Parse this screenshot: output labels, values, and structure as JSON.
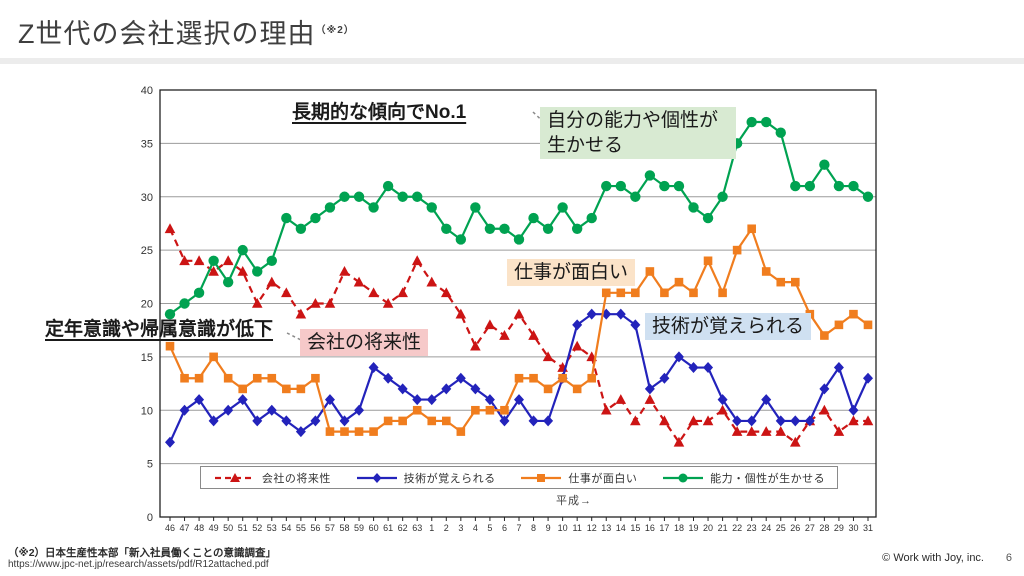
{
  "slide": {
    "title": "Z世代の会社選択の理由",
    "title_note": "（※2）",
    "footnote_line1": "（※2）日本生産性本部「新入社員働くことの意識調査」",
    "footnote_line2": "https://www.jpc-net.jp/research/assets/pdf/R12attached.pdf",
    "copyright": "© Work with Joy, inc.",
    "page_number": "6"
  },
  "annotations": {
    "trend_no1": "長期的な傾向でNo.1",
    "ability_box": "自分の能力や個性が生かせる",
    "decline_note": "定年意識や帰属意識が低下",
    "future_box": "会社の将来性",
    "fun_box": "仕事が面白い",
    "skill_box": "技術が覚えられる"
  },
  "chart_data": {
    "type": "line",
    "title": "",
    "xlabel_note": "平成→",
    "ylim": [
      0,
      40
    ],
    "ytick_step": 5,
    "grid": true,
    "legend_position": "bottom-inside",
    "categories": [
      "46",
      "47",
      "48",
      "49",
      "50",
      "51",
      "52",
      "53",
      "54",
      "55",
      "56",
      "57",
      "58",
      "59",
      "60",
      "61",
      "62",
      "63",
      "1",
      "2",
      "3",
      "4",
      "5",
      "6",
      "7",
      "8",
      "9",
      "10",
      "11",
      "12",
      "13",
      "14",
      "15",
      "16",
      "17",
      "18",
      "19",
      "20",
      "21",
      "22",
      "23",
      "24",
      "25",
      "26",
      "27",
      "28",
      "29",
      "30",
      "31"
    ],
    "series": [
      {
        "name": "会社の将来性",
        "color": "#cc1414",
        "marker": "triangle",
        "dashed": true,
        "values": [
          27,
          24,
          24,
          23,
          24,
          23,
          20,
          22,
          21,
          19,
          20,
          20,
          23,
          22,
          21,
          20,
          21,
          24,
          22,
          21,
          19,
          16,
          18,
          17,
          19,
          17,
          15,
          14,
          16,
          15,
          10,
          11,
          9,
          11,
          9,
          7,
          9,
          9,
          10,
          8,
          8,
          8,
          8,
          7,
          9,
          10,
          8,
          9,
          9
        ]
      },
      {
        "name": "技術が覚えられる",
        "color": "#2323bb",
        "marker": "diamond",
        "dashed": false,
        "values": [
          7,
          10,
          11,
          9,
          10,
          11,
          9,
          10,
          9,
          8,
          9,
          11,
          9,
          10,
          14,
          13,
          12,
          11,
          11,
          12,
          13,
          12,
          11,
          9,
          11,
          9,
          9,
          13,
          18,
          19,
          19,
          19,
          18,
          12,
          13,
          15,
          14,
          14,
          11,
          9,
          9,
          11,
          9,
          9,
          9,
          12,
          14,
          10,
          13
        ]
      },
      {
        "name": "仕事が面白い",
        "color": "#f07d1e",
        "marker": "square",
        "dashed": false,
        "values": [
          16,
          13,
          13,
          15,
          13,
          12,
          13,
          13,
          12,
          12,
          13,
          8,
          8,
          8,
          8,
          9,
          9,
          10,
          9,
          9,
          8,
          10,
          10,
          10,
          13,
          13,
          12,
          13,
          12,
          13,
          21,
          21,
          21,
          23,
          21,
          22,
          21,
          24,
          21,
          25,
          27,
          23,
          22,
          22,
          19,
          17,
          18,
          19,
          18
        ]
      },
      {
        "name": "能力・個性が生かせる",
        "color": "#00a251",
        "marker": "circle",
        "dashed": false,
        "values": [
          19,
          20,
          21,
          24,
          22,
          25,
          23,
          24,
          28,
          27,
          28,
          29,
          30,
          30,
          29,
          31,
          30,
          30,
          29,
          27,
          26,
          29,
          27,
          27,
          26,
          28,
          27,
          29,
          27,
          28,
          31,
          31,
          30,
          32,
          31,
          31,
          29,
          28,
          30,
          35,
          37,
          37,
          36,
          31,
          31,
          33,
          31,
          31,
          30
        ]
      }
    ]
  }
}
